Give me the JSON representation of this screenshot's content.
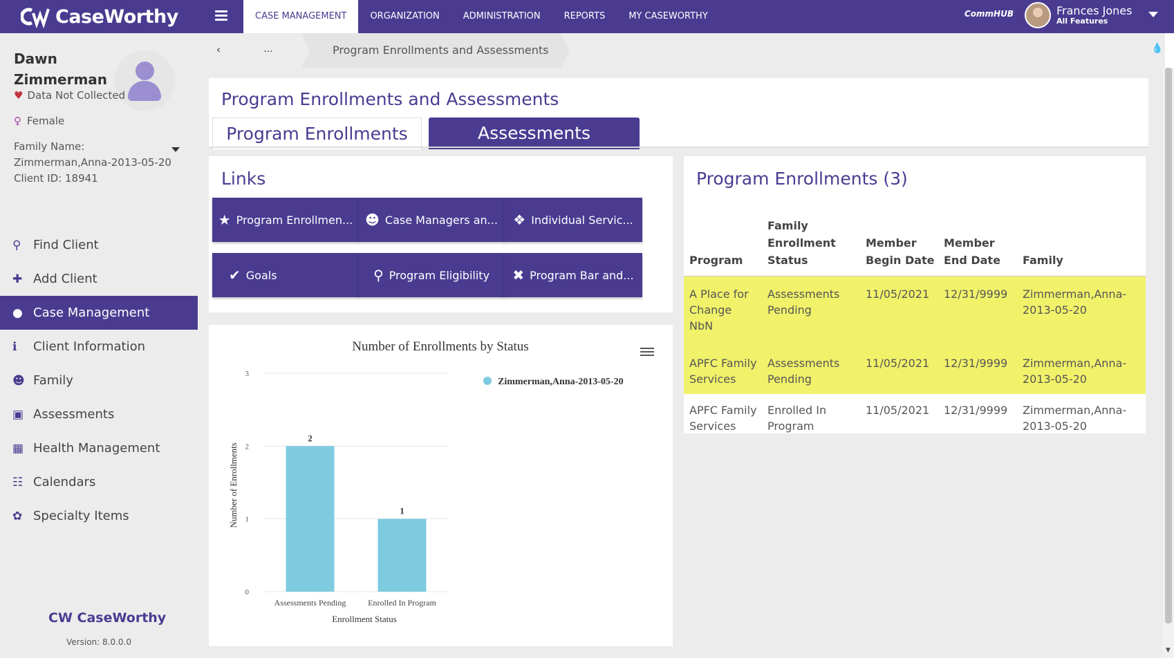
{
  "app": {
    "logo_text": "CaseWorthy",
    "nav": [
      "CASE MANAGEMENT",
      "ORGANIZATION",
      "ADMINISTRATION",
      "REPORTS",
      "MY CASEWORTHY"
    ],
    "commhub": "CommHUB",
    "user": {
      "name": "Frances Jones",
      "role": "All Features"
    }
  },
  "client": {
    "first_name": "Dawn",
    "last_name": "Zimmerman",
    "data_status": "Data Not Collected",
    "gender": "Female",
    "family_label": "Family Name:",
    "family_name": "Zimmerman,Anna-2013-05-20",
    "client_id": "Client ID: 18941"
  },
  "sidebar": {
    "items": [
      {
        "label": "Find Client",
        "icon": "search-icon"
      },
      {
        "label": "Add Client",
        "icon": "plus-icon"
      },
      {
        "label": "Case Management",
        "icon": "person-icon"
      },
      {
        "label": "Client Information",
        "icon": "info-icon"
      },
      {
        "label": "Family",
        "icon": "family-icon"
      },
      {
        "label": "Assessments",
        "icon": "clipboard-icon"
      },
      {
        "label": "Health Management",
        "icon": "medical-kit-icon"
      },
      {
        "label": "Calendars",
        "icon": "calendar-icon"
      },
      {
        "label": "Specialty Items",
        "icon": "specialty-icon"
      }
    ],
    "footer_logo": "CaseWorthy",
    "version": "Version: 8.0.0.0"
  },
  "breadcrumb": {
    "back": "‹",
    "dots": "...",
    "current": "Program Enrollments and Assessments"
  },
  "page": {
    "title": "Program Enrollments and Assessments",
    "tabs": [
      "Program Enrollments",
      "Assessments"
    ]
  },
  "links": {
    "title": "Links",
    "buttons": [
      {
        "label": "Program Enrollmen...",
        "icon": "star-icon"
      },
      {
        "label": "Case Managers an...",
        "icon": "group-icon"
      },
      {
        "label": "Individual Servic...",
        "icon": "boxes-icon"
      },
      {
        "label": "Goals",
        "icon": "check-icon"
      },
      {
        "label": "Program Eligibility",
        "icon": "search-person-icon"
      },
      {
        "label": "Program Bar and...",
        "icon": "person-remove-icon"
      }
    ]
  },
  "chart_data": {
    "type": "bar",
    "title": "Number of Enrollments by Status",
    "categories": [
      "Assessments Pending",
      "Enrolled In Program"
    ],
    "series": [
      {
        "name": "Zimmerman,Anna-2013-05-20",
        "values": [
          2,
          1
        ]
      }
    ],
    "xlabel": "Enrollment Status",
    "ylabel": "Number of Enrollments",
    "ylim": [
      0,
      3
    ],
    "yticks": [
      "0",
      "1",
      "2",
      "3"
    ],
    "color": "#7ecbe0",
    "legend": "top-right"
  },
  "enrollments": {
    "title": "Program Enrollments (3)",
    "headers": [
      "Program",
      "Family Enrollment Status",
      "Member Begin Date",
      "Member End Date",
      "Family"
    ],
    "rows": [
      {
        "program": "A Place for Change NbN",
        "status": "Assessments Pending",
        "begin": "11/05/2021",
        "end": "12/31/9999",
        "family": "Zimmerman,Anna-2013-05-20",
        "highlight": true
      },
      {
        "program": "APFC Family Services",
        "status": "Assessments Pending",
        "begin": "11/05/2021",
        "end": "12/31/9999",
        "family": "Zimmerman,Anna-2013-05-20",
        "highlight": true
      },
      {
        "program": "APFC Family Services",
        "status": "Enrolled In Program",
        "begin": "11/05/2021",
        "end": "12/31/9999",
        "family": "Zimmerman,Anna-2013-05-20",
        "highlight": false
      }
    ]
  }
}
